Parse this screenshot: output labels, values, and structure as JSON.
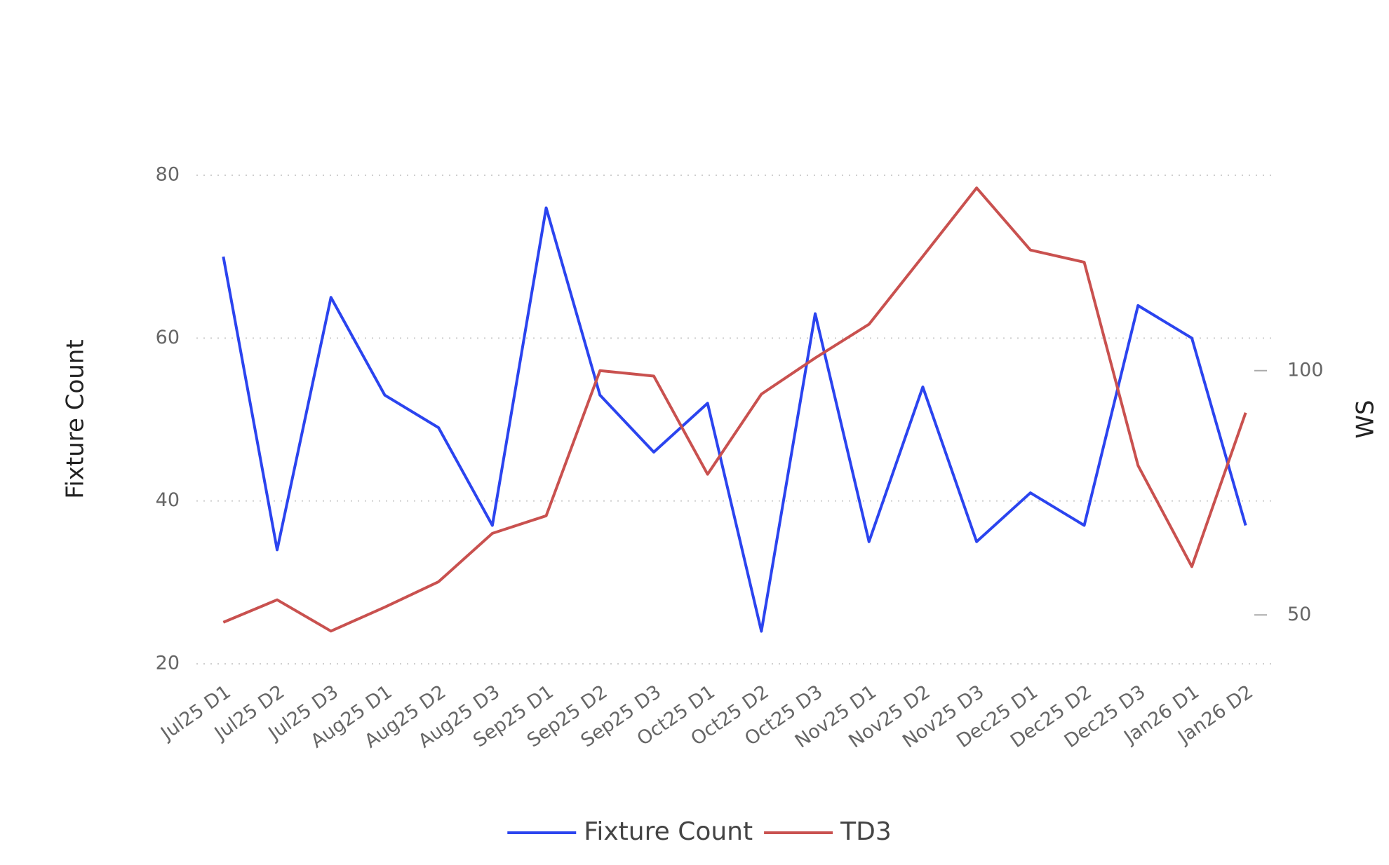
{
  "chart_data": {
    "type": "line",
    "categories": [
      "Jul25 D1",
      "Jul25 D2",
      "Jul25 D3",
      "Aug25 D1",
      "Aug25 D2",
      "Aug25 D3",
      "Sep25 D1",
      "Sep25 D2",
      "Sep25 D3",
      "Oct25 D1",
      "Oct25 D2",
      "Oct25 D3",
      "Nov25 D1",
      "Nov25 D2",
      "Nov25 D3",
      "Dec25 D1",
      "Dec25 D2",
      "Dec25 D3",
      "Jan26 D1",
      "Jan26 D2"
    ],
    "series": [
      {
        "name": "Fixture Count",
        "color": "#2b44ef",
        "values": [
          70,
          34,
          65,
          53,
          49,
          37,
          76,
          53,
          46,
          52,
          24,
          63,
          35,
          54,
          35,
          41,
          37,
          64,
          60,
          37
        ]
      },
      {
        "name": "TD3",
        "color": "#c9514f",
        "axis": "y2",
        "values": [
          48.5,
          53.1,
          46.7,
          51.6,
          56.8,
          66.7,
          70.3,
          100,
          98.9,
          78.8,
          95.2,
          102.6,
          109.5,
          123.4,
          137.4,
          124.7,
          122.2,
          80.6,
          59.9,
          91.4
        ]
      }
    ],
    "y_label": "Fixture Count",
    "y2_label": "WS",
    "ylim": [
      20,
      80
    ],
    "yticks": [
      20,
      40,
      60,
      80
    ],
    "y2lim": [
      40,
      140
    ],
    "y2ticks": [
      50,
      100
    ],
    "grid": true,
    "legend": "bottom"
  }
}
